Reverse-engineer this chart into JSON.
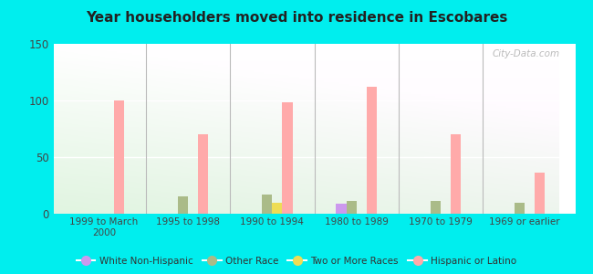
{
  "title": "Year householders moved into residence in Escobares",
  "categories": [
    "1999 to March\n2000",
    "1995 to 1998",
    "1990 to 1994",
    "1980 to 1989",
    "1970 to 1979",
    "1969 or earlier"
  ],
  "series": {
    "White Non-Hispanic": [
      0,
      0,
      0,
      9,
      0,
      0
    ],
    "Other Race": [
      0,
      15,
      17,
      11,
      11,
      10
    ],
    "Two or More Races": [
      0,
      0,
      10,
      0,
      0,
      0
    ],
    "Hispanic or Latino": [
      100,
      70,
      98,
      112,
      70,
      36
    ]
  },
  "colors": {
    "White Non-Hispanic": "#cc99ee",
    "Other Race": "#aabb88",
    "Two or More Races": "#eedd55",
    "Hispanic or Latino": "#ffaaaa"
  },
  "ylim": [
    0,
    150
  ],
  "yticks": [
    0,
    50,
    100,
    150
  ],
  "background_color": "#00eeee",
  "watermark": "City-Data.com",
  "bar_width": 0.12,
  "legend_items": [
    "White Non-Hispanic",
    "Other Race",
    "Two or More Races",
    "Hispanic or Latino"
  ]
}
